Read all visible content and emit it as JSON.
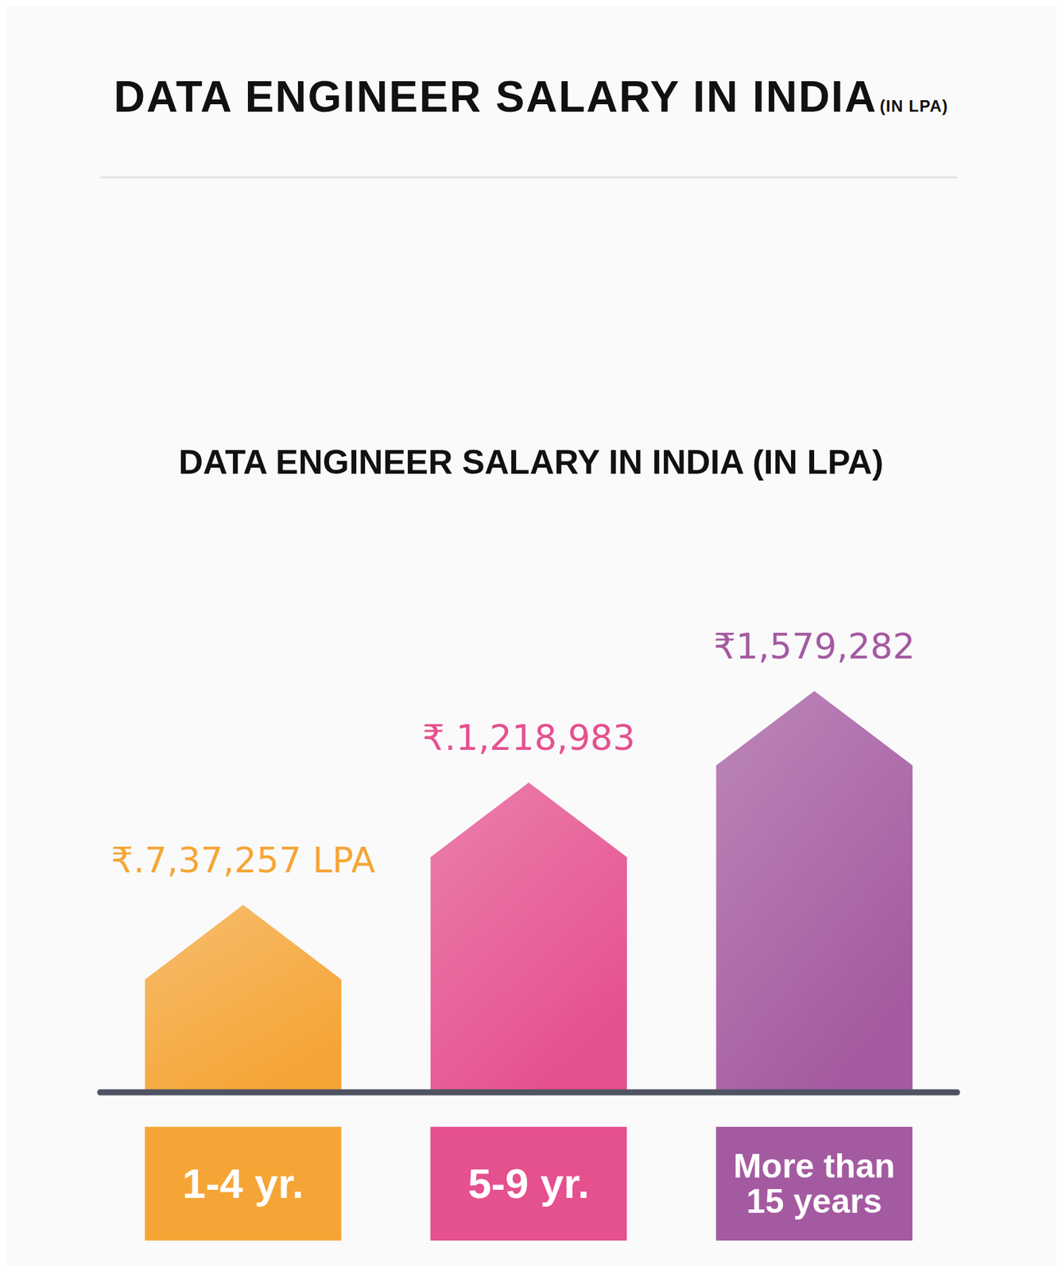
{
  "chart_data": {
    "type": "bar",
    "title": "DATA ENGINEER SALARY IN INDIA",
    "annotations": [
      "(IN LPA)"
    ],
    "subtitle": "DATA ENGINEER SALARY IN INDIA (IN LPA)",
    "categories": [
      "1-4 yr.",
      "5-9 yr.",
      "More than 15 years"
    ],
    "values": [
      737257,
      1218983,
      1579282
    ],
    "value_labels": [
      "₹.7,37,257 LPA",
      "₹.1,218,983",
      "₹1,579,282"
    ],
    "colors": [
      "#f5a536",
      "#e5508f",
      "#a45aa0"
    ],
    "ylim": [
      0,
      3600000
    ],
    "yticks": [
      0,
      150000,
      300000,
      450000,
      600000,
      750000,
      900000,
      1050000,
      1200000,
      1350000,
      1500000,
      1650000,
      1800000,
      1950000,
      2100000,
      2250000,
      2400000,
      2550000,
      2700000,
      2850000,
      3000000,
      3150000,
      3300000,
      3450000,
      3600000
    ],
    "grid": true,
    "data_labels": true,
    "tick_labels": false
  }
}
